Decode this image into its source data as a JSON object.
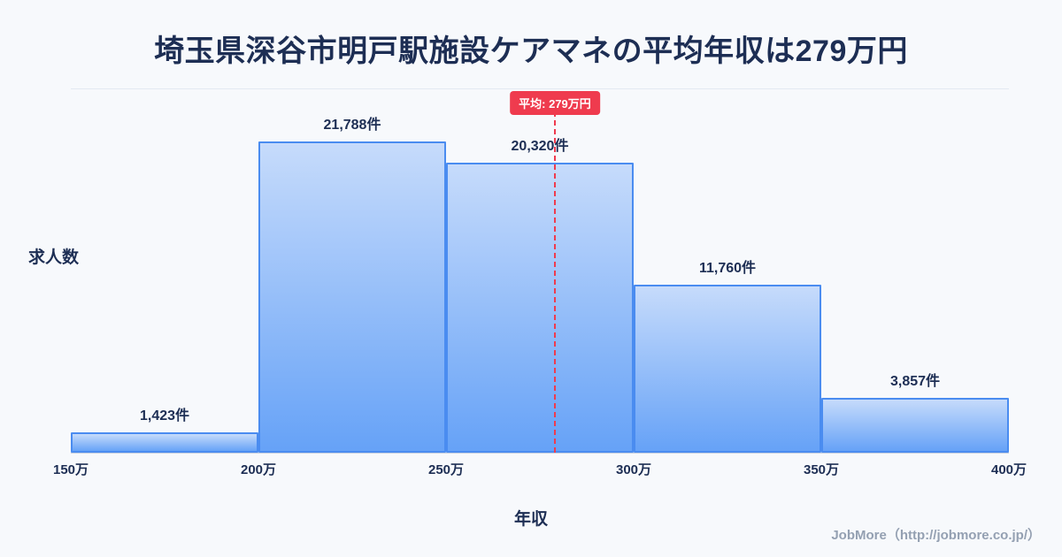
{
  "title": "埼玉県深谷市明戸駅施設ケアマネの平均年収は279万円",
  "chart_data": {
    "type": "bar",
    "title": "埼玉県深谷市明戸駅施設ケアマネの平均年収は279万円",
    "xlabel": "年収",
    "ylabel": "求人数",
    "x_range": [
      150,
      400
    ],
    "x_ticks": [
      "150万",
      "200万",
      "250万",
      "300万",
      "350万",
      "400万"
    ],
    "grid": "minimal",
    "legend": "none",
    "bins": [
      {
        "range": [
          150,
          200
        ],
        "value": 1423,
        "label": "1,423件"
      },
      {
        "range": [
          200,
          250
        ],
        "value": 21788,
        "label": "21,788件"
      },
      {
        "range": [
          250,
          300
        ],
        "value": 20320,
        "label": "20,320件"
      },
      {
        "range": [
          300,
          350
        ],
        "value": 11760,
        "label": "11,760件"
      },
      {
        "range": [
          350,
          400
        ],
        "value": 3857,
        "label": "3,857件"
      }
    ],
    "average": {
      "value": 279,
      "label": "平均: 279万円"
    },
    "colors": {
      "background": "#f7f9fc",
      "text": "#1d2e54",
      "bar_border": "#4a8cf0",
      "bar_fill_top": "#c6dbfb",
      "bar_fill_bottom": "#66a2f7",
      "average_line": "#ef3b4e",
      "badge_bg": "#ef3b4e",
      "badge_text": "#ffffff"
    }
  },
  "footer": {
    "credit": "JobMore（http://jobmore.co.jp/）"
  }
}
